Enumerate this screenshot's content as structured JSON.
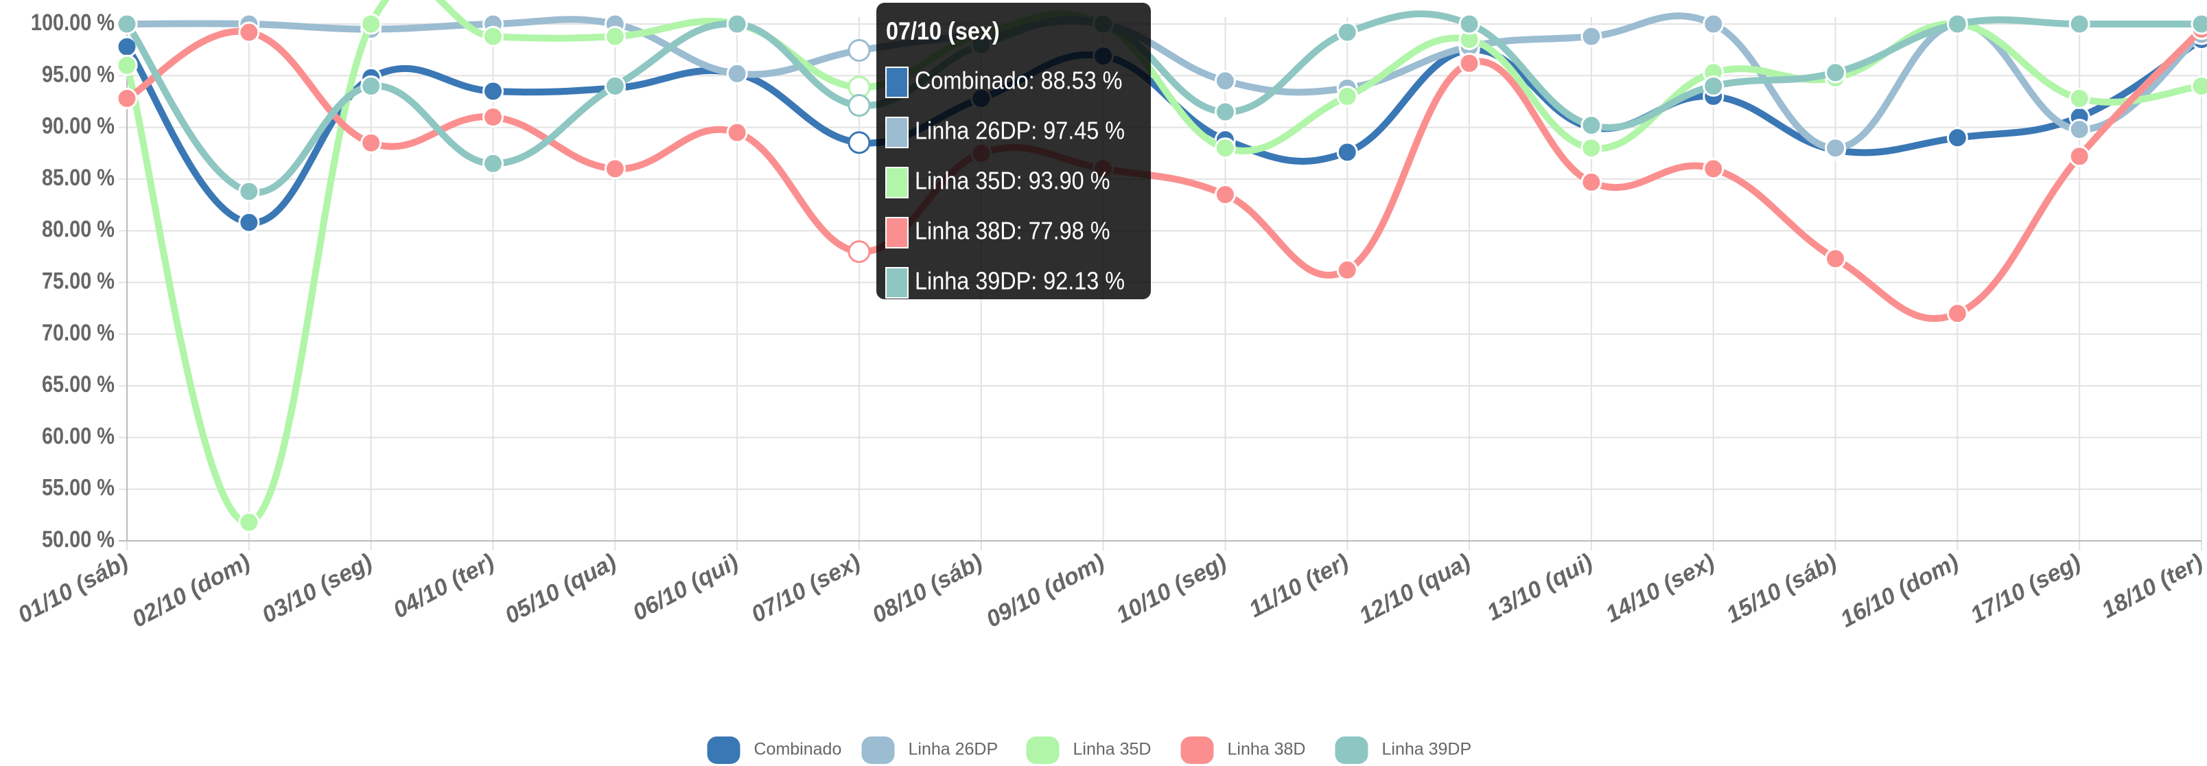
{
  "chart_data": {
    "type": "line",
    "categories": [
      "01/10 (sáb)",
      "02/10 (dom)",
      "03/10 (seg)",
      "04/10 (ter)",
      "05/10 (qua)",
      "06/10 (qui)",
      "07/10 (sex)",
      "08/10 (sáb)",
      "09/10 (dom)",
      "10/10 (seg)",
      "11/10 (ter)",
      "12/10 (qua)",
      "13/10 (qui)",
      "14/10 (sex)",
      "15/10 (sáb)",
      "16/10 (dom)",
      "17/10 (seg)",
      "18/10 (ter)"
    ],
    "series": [
      {
        "name": "Combinado",
        "color": "#3a77b5",
        "values": [
          97.8,
          80.8,
          94.8,
          93.5,
          93.8,
          95.2,
          88.53,
          92.8,
          96.9,
          88.8,
          87.6,
          97.5,
          90.0,
          93.0,
          87.8,
          89.0,
          91.0,
          98.5
        ]
      },
      {
        "name": "Linha 26DP",
        "color": "#9bbcd1",
        "values": [
          100,
          100,
          99.5,
          100,
          100,
          95.2,
          97.45,
          99.0,
          100,
          94.5,
          93.8,
          97.8,
          98.8,
          100,
          88.0,
          100,
          89.8,
          99.0
        ]
      },
      {
        "name": "Linha 35D",
        "color": "#b0f5a8",
        "values": [
          96.0,
          51.8,
          100,
          98.8,
          98.8,
          100,
          93.9,
          99.0,
          100,
          88.0,
          93.0,
          98.5,
          88.0,
          95.3,
          94.8,
          100,
          92.8,
          94.0
        ]
      },
      {
        "name": "Linha 38D",
        "color": "#fb8f8f",
        "values": [
          92.8,
          99.2,
          88.5,
          91.0,
          86.0,
          89.5,
          77.98,
          87.5,
          86.0,
          83.5,
          76.2,
          96.2,
          84.7,
          86.0,
          77.3,
          72.0,
          87.2,
          99.5
        ]
      },
      {
        "name": "Linha 39DP",
        "color": "#8ec6c2",
        "values": [
          100,
          83.8,
          94.0,
          86.5,
          94.0,
          100,
          92.13,
          98.0,
          100,
          91.5,
          99.2,
          100,
          90.2,
          94.0,
          95.3,
          100,
          100,
          100
        ]
      }
    ],
    "ylim": [
      50,
      100
    ],
    "yticks": [
      {
        "value": 50,
        "label": "50.00 %"
      },
      {
        "value": 55,
        "label": "55.00 %"
      },
      {
        "value": 60,
        "label": "60.00 %"
      },
      {
        "value": 65,
        "label": "65.00 %"
      },
      {
        "value": 70,
        "label": "70.00 %"
      },
      {
        "value": 75,
        "label": "75.00 %"
      },
      {
        "value": 80,
        "label": "80.00 %"
      },
      {
        "value": 85,
        "label": "85.00 %"
      },
      {
        "value": 90,
        "label": "90.00 %"
      },
      {
        "value": 95,
        "label": "95.00 %"
      },
      {
        "value": 100,
        "label": "100.00 %"
      }
    ],
    "grid": true,
    "legend": "bottom",
    "tooltip": {
      "title": "07/10 (sex)",
      "lines": [
        "Combinado: 88.53 %",
        "Linha 26DP: 97.45 %",
        "Linha 35D: 93.90 %",
        "Linha 38D: 77.98 %",
        "Linha 39DP: 92.13 %"
      ]
    }
  }
}
